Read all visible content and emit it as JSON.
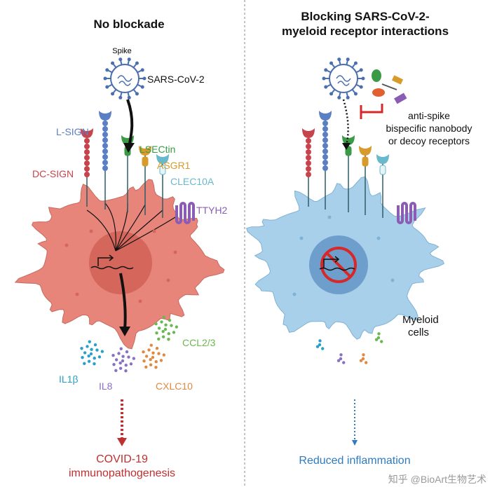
{
  "left": {
    "title": "No blockade",
    "spike_label": "Spike",
    "virus_label": "SARS-CoV-2",
    "receptors": [
      {
        "name": "DC-SIGN",
        "color": "#c8444c"
      },
      {
        "name": "L-SIGN",
        "color": "#5a7fc4"
      },
      {
        "name": "LSECtin",
        "color": "#3a9a45"
      },
      {
        "name": "ASGR1",
        "color": "#d89a2a"
      },
      {
        "name": "CLEC10A",
        "color": "#6ab8cc"
      },
      {
        "name": "TTYH2",
        "color": "#8a5cb4"
      }
    ],
    "cytokines": [
      {
        "name": "IL1β",
        "color": "#2a9fc8"
      },
      {
        "name": "IL8",
        "color": "#8a70c0"
      },
      {
        "name": "CXLC10",
        "color": "#e08a40"
      },
      {
        "name": "CCL2/3",
        "color": "#6ab850"
      }
    ],
    "outcome_line1": "COVID-19",
    "outcome_line2": "immunopathogenesis",
    "outcome_color": "#c03030",
    "cell_color": "#e8857a"
  },
  "right": {
    "title_line1": "Blocking SARS-CoV-2-",
    "title_line2": "myeloid receptor interactions",
    "blocker_line1": "anti-spike",
    "blocker_line2": "bispecific nanobody",
    "blocker_line3": "or decoy receptors",
    "cell_line1": "Myeloid",
    "cell_line2": "cells",
    "outcome": "Reduced inflammation",
    "outcome_color": "#2e7bbf",
    "cell_color": "#a9d0ea"
  },
  "watermark": "知乎 @BioArt生物艺术"
}
